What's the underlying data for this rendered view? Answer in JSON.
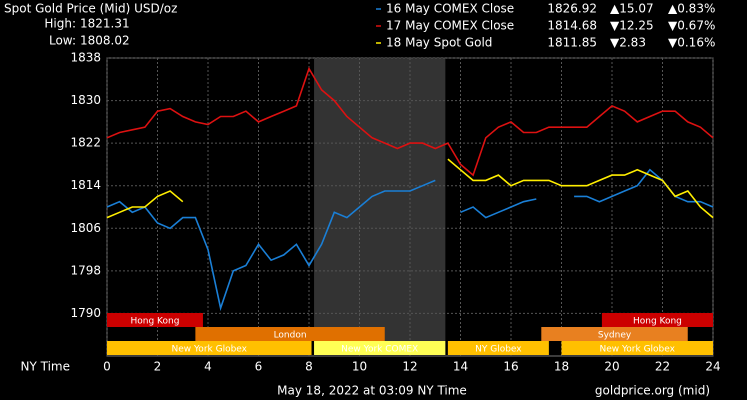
{
  "chart_data": {
    "type": "line",
    "title": "Spot Gold Price (Mid) USD/oz",
    "stats": [
      {
        "label": "High:",
        "value": "1821.31"
      },
      {
        "label": "Low:",
        "value": "1808.02"
      }
    ],
    "x_label": "NY Time",
    "footer": "May 18, 2022 at 03:09 NY Time",
    "source": "goldprice.org (mid)",
    "xlim": [
      0,
      24
    ],
    "xticks": [
      0,
      2,
      4,
      6,
      8,
      10,
      12,
      14,
      16,
      18,
      20,
      22,
      24
    ],
    "ylim": [
      1782,
      1838
    ],
    "yticks": [
      1790,
      1798,
      1806,
      1814,
      1822,
      1830,
      1838
    ],
    "grid": true,
    "shade": [
      8.2,
      13.4
    ],
    "x": [
      0,
      0.5,
      1,
      1.5,
      2,
      2.5,
      3,
      3.5,
      4,
      4.5,
      5,
      5.5,
      6,
      6.5,
      7,
      7.5,
      8,
      8.5,
      9,
      9.5,
      10,
      10.5,
      11,
      11.5,
      12,
      12.5,
      13,
      13.5,
      14,
      14.5,
      15,
      15.5,
      16,
      16.5,
      17,
      17.5,
      18,
      18.5,
      19,
      19.5,
      20,
      20.5,
      21,
      21.5,
      22,
      22.5,
      23,
      23.5,
      24
    ],
    "series": [
      {
        "name": "16 May COMEX Close",
        "color": "#1a7fd6",
        "close": "1826.92",
        "change": "▲15.07",
        "pct": "▲0.83%",
        "change_color": "#22cc22",
        "values": [
          1810,
          1811,
          1809,
          1810,
          1807,
          1806,
          1808,
          1808,
          1802,
          1791,
          1798,
          1799,
          1803,
          1800,
          1801,
          1803,
          1799,
          1803,
          1809,
          1808,
          1810,
          1812,
          1813,
          1813,
          1813,
          1814,
          1815,
          null,
          1809,
          1810,
          1808,
          1809,
          1810,
          1811,
          1811.5,
          null,
          null,
          1812,
          1812,
          1811,
          1812,
          1813,
          1814,
          1817,
          1815,
          1812,
          1811,
          1811,
          1810
        ]
      },
      {
        "name": "17 May COMEX Close",
        "color": "#dd1111",
        "close": "1814.68",
        "change": "▼12.25",
        "pct": "▼0.67%",
        "change_color": "#ee2222",
        "values": [
          1823,
          1824,
          1824.5,
          1825,
          1828,
          1828.5,
          1827,
          1826,
          1825.5,
          1827,
          1827,
          1828,
          1826,
          1827,
          1828,
          1829,
          1836,
          1832,
          1830,
          1827,
          1825,
          1823,
          1822,
          1821,
          1822,
          1822,
          1821,
          1822,
          1818,
          1816,
          1823,
          1825,
          1826,
          1824,
          1824,
          1825,
          1825,
          1825,
          1825,
          1827,
          1829,
          1828,
          1826,
          1827,
          1828,
          1828,
          1826,
          1825,
          1823
        ]
      },
      {
        "name": "18 May Spot Gold",
        "color": "#ffee00",
        "close": "1811.85",
        "change": "▼2.83",
        "pct": "▼0.16%",
        "change_color": "#ee2222",
        "values": [
          1808,
          1809,
          1810,
          1810,
          1812,
          1813,
          1811,
          null,
          null,
          null,
          null,
          null,
          null,
          null,
          null,
          null,
          null,
          null,
          null,
          null,
          null,
          null,
          null,
          null,
          null,
          null,
          null,
          1819,
          1817,
          1815,
          1815,
          1816,
          1814,
          1815,
          1815,
          1815,
          1814,
          1814,
          1814,
          1815,
          1816,
          1816,
          1817,
          1816,
          1815,
          1812,
          1813,
          1810,
          1808
        ]
      }
    ],
    "sessions": [
      {
        "name": "Hong Kong",
        "start": 0,
        "end": 3.8,
        "row": 0,
        "color": "#cc0000"
      },
      {
        "name": "Hong Kong",
        "start": 19.6,
        "end": 24,
        "row": 0,
        "color": "#cc0000"
      },
      {
        "name": "London",
        "start": 3.5,
        "end": 11,
        "row": 1,
        "color": "#e07000"
      },
      {
        "name": "Sydney",
        "start": 17.2,
        "end": 23,
        "row": 1,
        "color": "#e88020"
      },
      {
        "name": "New York Globex",
        "start": 0,
        "end": 8.1,
        "row": 2,
        "color": "#ffc000"
      },
      {
        "name": "New York COMEX",
        "start": 8.2,
        "end": 13.4,
        "row": 2,
        "color": "#ffff55"
      },
      {
        "name": "NY Globex",
        "start": 13.5,
        "end": 17.5,
        "row": 2,
        "color": "#ffc000"
      },
      {
        "name": "New York Globex",
        "start": 18,
        "end": 24,
        "row": 2,
        "color": "#ffc000"
      }
    ]
  }
}
